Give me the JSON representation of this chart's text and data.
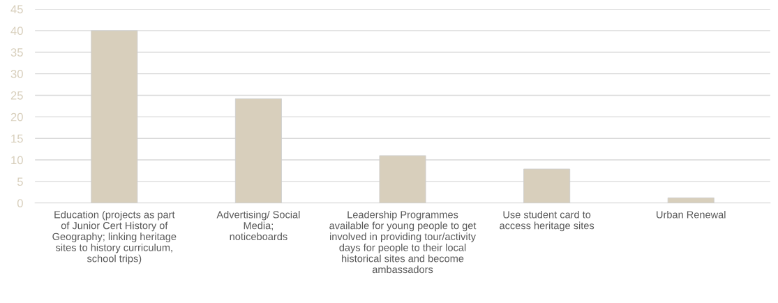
{
  "chart_data": {
    "type": "bar",
    "categories": [
      "Education (projects as part\nof Junior Cert History of\nGeography; linking heritage\nsites to history curriculum,\nschool trips)",
      "Advertising/ Social\nMedia;\nnoticeboards",
      "Leadership Programmes\navailable for young people to get\ninvolved in providing tour/activity\ndays for people to their local\nhistorical sites and become\nambassadors",
      "Use student card to\naccess heritage sites",
      "Urban Renewal"
    ],
    "values": [
      40,
      24.2,
      11,
      7.9,
      1.2
    ],
    "color": "#d8cfbc",
    "ylim": [
      0,
      45
    ],
    "yticks": [
      0,
      5,
      10,
      15,
      20,
      25,
      30,
      35,
      40,
      45
    ],
    "grid": "y",
    "legend": false
  }
}
